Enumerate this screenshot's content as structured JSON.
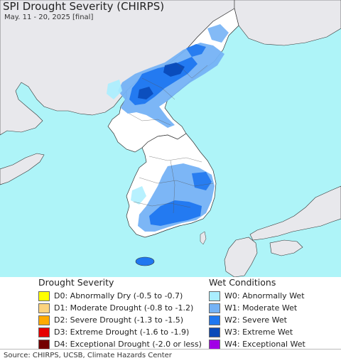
{
  "header": {
    "title": "SPI Drought Severity (CHIRPS)",
    "subtitle": "May. 11 - 20, 2025 [final]"
  },
  "map": {
    "ocean_color": "#aef4f8",
    "land_color": "#e8e8ec",
    "korea_land_color": "#ffffff"
  },
  "legend": {
    "drought": {
      "heading": "Drought Severity",
      "items": [
        {
          "label": "D0: Abnormally Dry (-0.5 to -0.7)",
          "color": "#ffff00"
        },
        {
          "label": "D1: Moderate Drought (-0.8 to -1.2)",
          "color": "#fcd37f"
        },
        {
          "label": "D2: Severe Drought (-1.3 to -1.5)",
          "color": "#ffaa00"
        },
        {
          "label": "D3: Extreme Drought (-1.6 to -1.9)",
          "color": "#e60000"
        },
        {
          "label": "D4: Exceptional Drought (-2.0 or less)",
          "color": "#730000"
        }
      ]
    },
    "wet": {
      "heading": "Wet Conditions",
      "items": [
        {
          "label": "W0: Abnormally Wet",
          "color": "#aaeeff"
        },
        {
          "label": "W1: Moderate Wet",
          "color": "#75b2f5"
        },
        {
          "label": "W2: Severe Wet",
          "color": "#1f77f0"
        },
        {
          "label": "W3: Extreme Wet",
          "color": "#0a4ab8"
        },
        {
          "label": "W4: Exceptional Wet",
          "color": "#a100e6"
        }
      ]
    }
  },
  "footer": {
    "source": "Source: CHIRPS, UCSB, Climate Hazards Center"
  }
}
